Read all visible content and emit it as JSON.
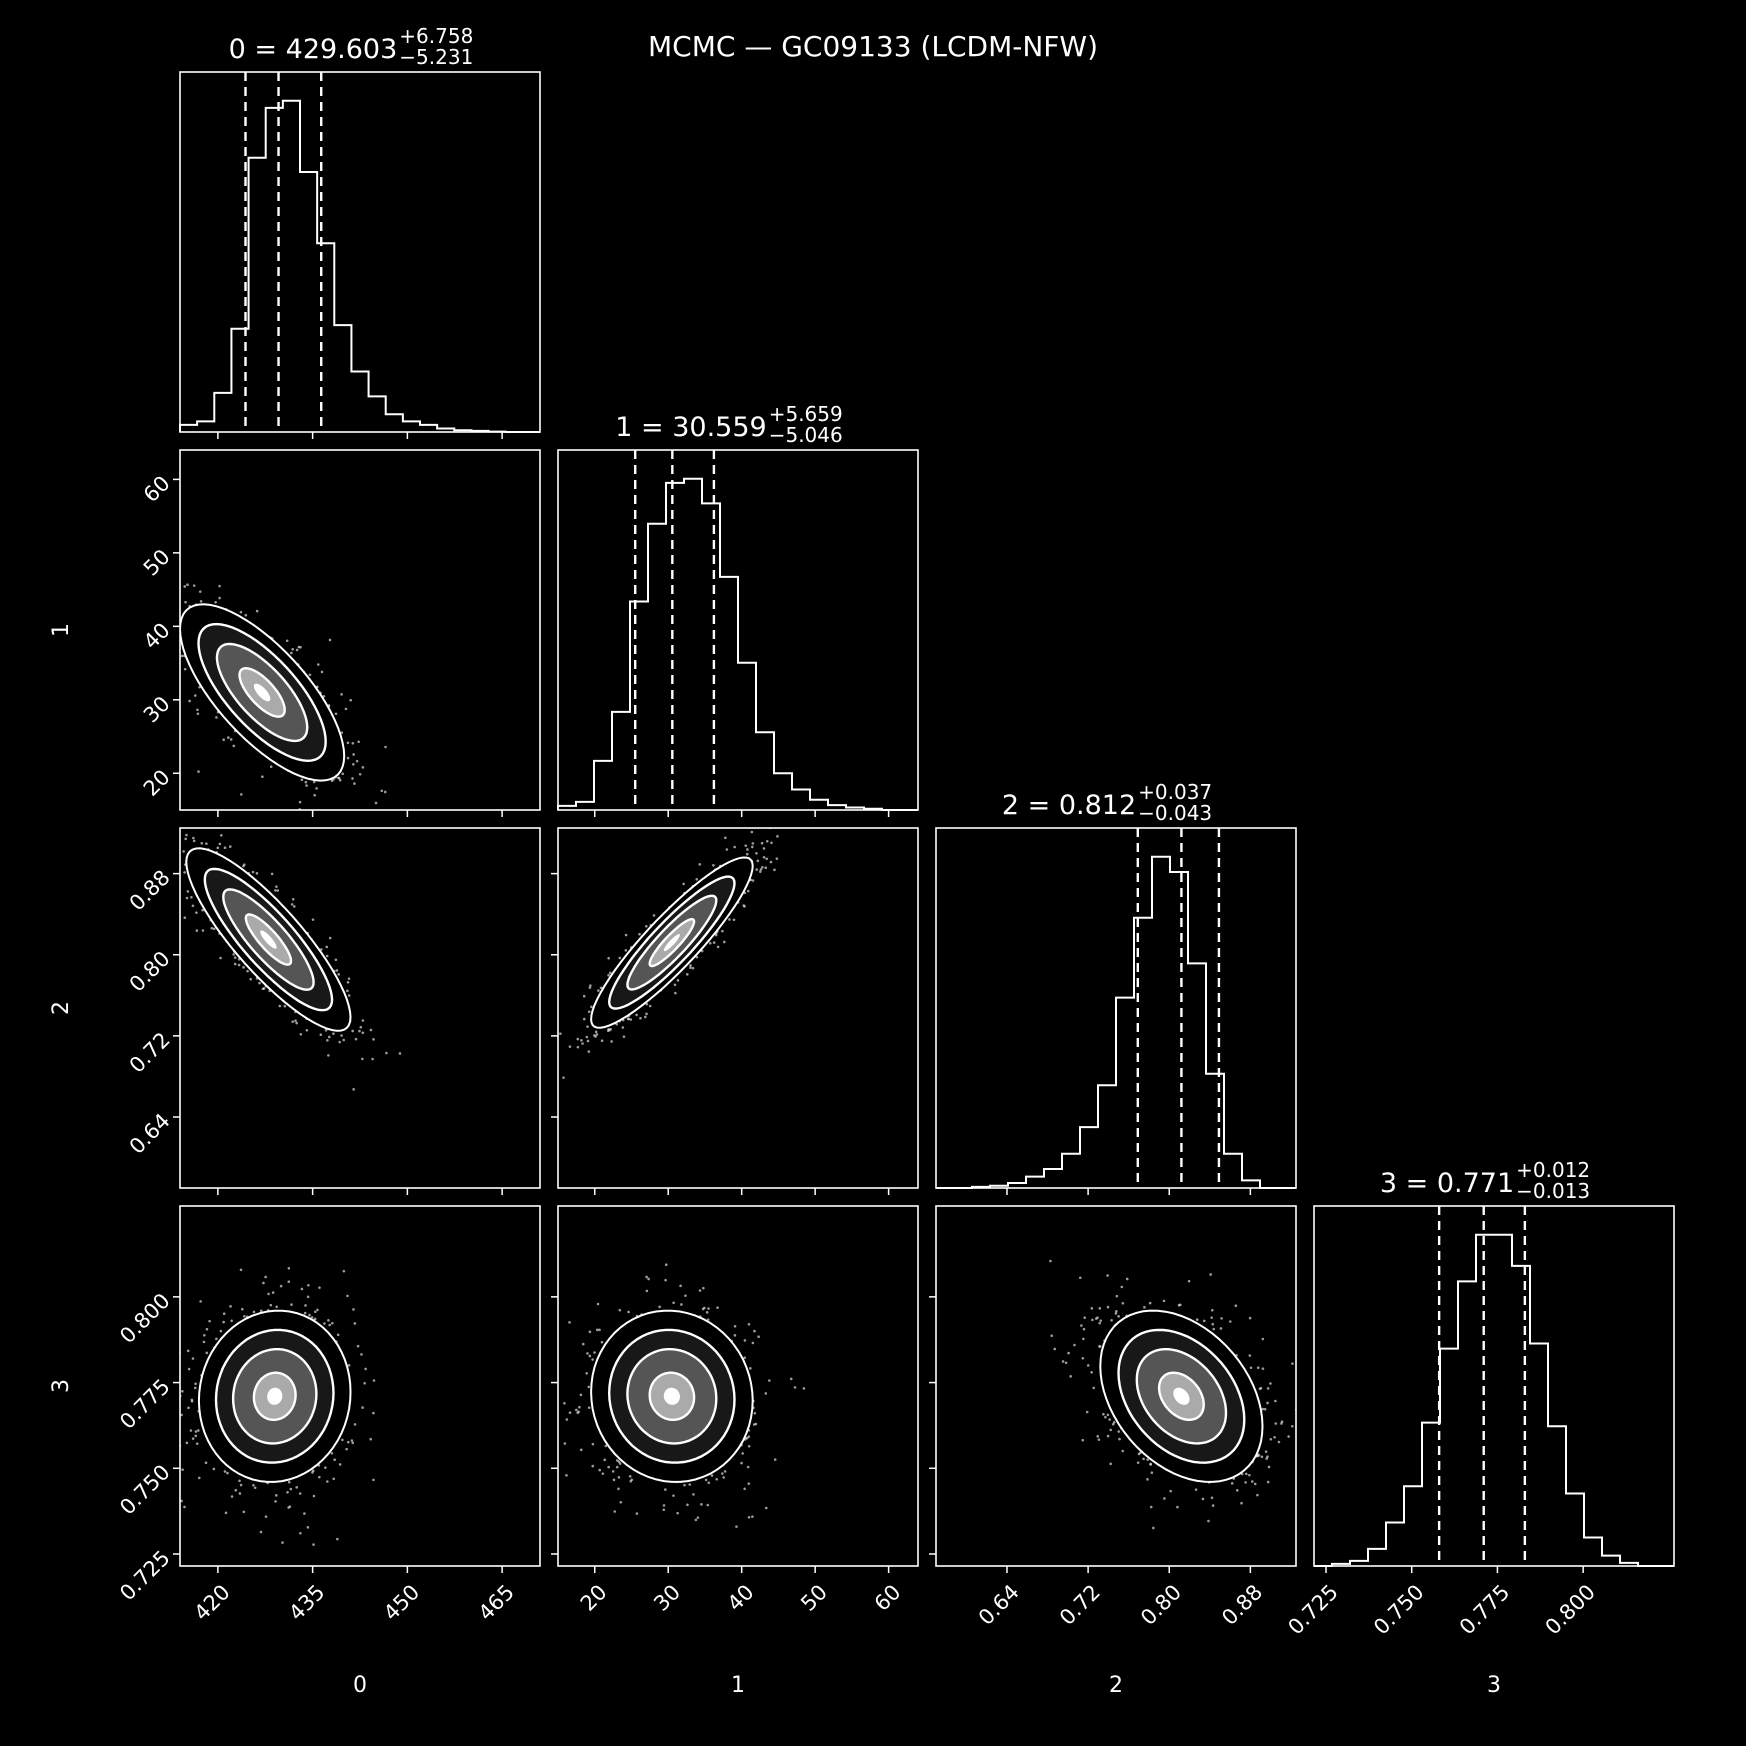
{
  "figure": {
    "title": "MCMC — GC09133 (LCDM-NFW)",
    "background": "#000000",
    "foreground": "#ffffff"
  },
  "chart_data": {
    "type": "corner",
    "parameters": [
      {
        "name": "0",
        "label": "0",
        "median": 429.603,
        "err_plus": 6.758,
        "err_minus": 5.231,
        "title_main": "0 = 429.603",
        "title_sup": "+6.758",
        "title_sub": "−5.231",
        "range": [
          414,
          471
        ],
        "ticks": [
          420,
          435,
          450,
          465
        ],
        "tick_labels": [
          "420",
          "435",
          "450",
          "465"
        ],
        "quantiles": [
          424.37,
          429.6,
          436.36
        ],
        "hist_counts": [
          0.02,
          0.03,
          0.11,
          0.29,
          0.77,
          0.91,
          0.93,
          0.73,
          0.53,
          0.3,
          0.17,
          0.1,
          0.05,
          0.03,
          0.02,
          0.01,
          0.005,
          0.003,
          0.001,
          0.0,
          0.0
        ]
      },
      {
        "name": "1",
        "label": "1",
        "median": 30.559,
        "err_plus": 5.659,
        "err_minus": 5.046,
        "title_main": "1 = 30.559",
        "title_sup": "+5.659",
        "title_sub": "−5.046",
        "range": [
          15,
          64
        ],
        "ticks": [
          20,
          30,
          40,
          50,
          60
        ],
        "tick_labels": [
          "20",
          "30",
          "40",
          "50",
          "60"
        ],
        "quantiles": [
          25.51,
          30.56,
          36.22
        ],
        "hist_counts": [
          0.01,
          0.02,
          0.12,
          0.24,
          0.51,
          0.7,
          0.8,
          0.81,
          0.75,
          0.57,
          0.36,
          0.19,
          0.09,
          0.05,
          0.025,
          0.012,
          0.006,
          0.003,
          0.0,
          0.0
        ]
      },
      {
        "name": "2",
        "label": "2",
        "median": 0.812,
        "err_plus": 0.037,
        "err_minus": 0.043,
        "title_main": "2 = 0.812",
        "title_sup": "+0.037",
        "title_sub": "−0.043",
        "range": [
          0.57,
          0.925
        ],
        "ticks": [
          0.64,
          0.72,
          0.8,
          0.88
        ],
        "tick_labels": [
          "0.64",
          "0.72",
          "0.80",
          "0.88"
        ],
        "quantiles": [
          0.769,
          0.812,
          0.849
        ],
        "hist_counts": [
          0.0,
          0.0,
          0.003,
          0.006,
          0.013,
          0.03,
          0.05,
          0.09,
          0.16,
          0.27,
          0.5,
          0.71,
          0.87,
          0.83,
          0.59,
          0.3,
          0.09,
          0.02,
          0.0,
          0.0
        ]
      },
      {
        "name": "3",
        "label": "3",
        "median": 0.771,
        "err_plus": 0.012,
        "err_minus": 0.013,
        "title_main": "3 = 0.771",
        "title_sup": "+0.012",
        "title_sub": "−0.013",
        "range": [
          0.7215,
          0.8265
        ],
        "ticks": [
          0.725,
          0.75,
          0.775,
          0.8
        ],
        "tick_labels": [
          "0.725",
          "0.750",
          "0.775",
          "0.800"
        ],
        "quantiles": [
          0.758,
          0.771,
          0.783
        ],
        "hist_counts": [
          0.0,
          0.004,
          0.01,
          0.033,
          0.084,
          0.154,
          0.277,
          0.42,
          0.55,
          0.64,
          0.64,
          0.58,
          0.43,
          0.27,
          0.14,
          0.055,
          0.02,
          0.006,
          0.0,
          0.0
        ]
      }
    ],
    "pairs": [
      {
        "x": 0,
        "y": 1,
        "mean": [
          427.0,
          31.0
        ],
        "sigma": [
          6.5,
          6.0
        ],
        "rho": -0.72
      },
      {
        "x": 0,
        "y": 2,
        "mean": [
          428.0,
          0.815
        ],
        "sigma": [
          6.5,
          0.045
        ],
        "rho": -0.85
      },
      {
        "x": 1,
        "y": 2,
        "mean": [
          30.5,
          0.812
        ],
        "sigma": [
          5.5,
          0.042
        ],
        "rho": 0.9
      },
      {
        "x": 0,
        "y": 3,
        "mean": [
          429.0,
          0.771
        ],
        "sigma": [
          6.0,
          0.0125
        ],
        "rho": 0.05
      },
      {
        "x": 1,
        "y": 3,
        "mean": [
          30.5,
          0.771
        ],
        "sigma": [
          5.5,
          0.0125
        ],
        "rho": -0.05
      },
      {
        "x": 2,
        "y": 3,
        "mean": [
          0.812,
          0.771
        ],
        "sigma": [
          0.04,
          0.0125
        ],
        "rho": -0.35
      }
    ],
    "contour_levels": [
      0.118,
      0.393,
      0.675,
      0.864
    ],
    "grid": false,
    "legend": "none"
  }
}
